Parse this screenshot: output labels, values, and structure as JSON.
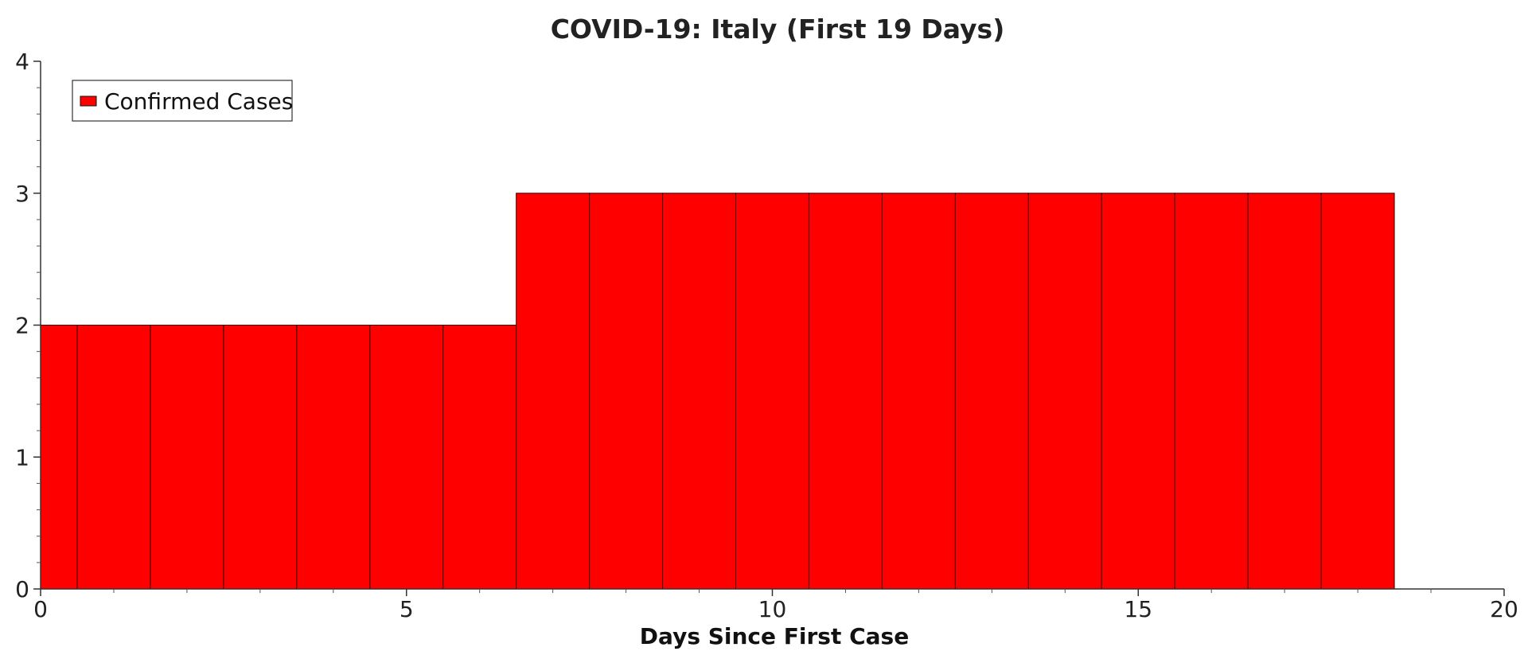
{
  "chart_data": {
    "type": "bar",
    "title": "COVID-19: Italy (First 19 Days)",
    "xlabel": "Days Since First Case",
    "ylabel": "",
    "x": [
      0,
      1,
      2,
      3,
      4,
      5,
      6,
      7,
      8,
      9,
      10,
      11,
      12,
      13,
      14,
      15,
      16,
      17,
      18
    ],
    "series": [
      {
        "name": "Confirmed Cases",
        "color": "#ff0000",
        "values": [
          2,
          2,
          2,
          2,
          2,
          2,
          2,
          3,
          3,
          3,
          3,
          3,
          3,
          3,
          3,
          3,
          3,
          3,
          3
        ]
      }
    ],
    "xlim": [
      0,
      20
    ],
    "ylim": [
      0,
      4
    ],
    "xticks": [
      0,
      5,
      10,
      15,
      20
    ],
    "yticks": [
      0,
      1,
      2,
      3,
      4
    ],
    "grid": false,
    "legend_position": "top-left"
  }
}
